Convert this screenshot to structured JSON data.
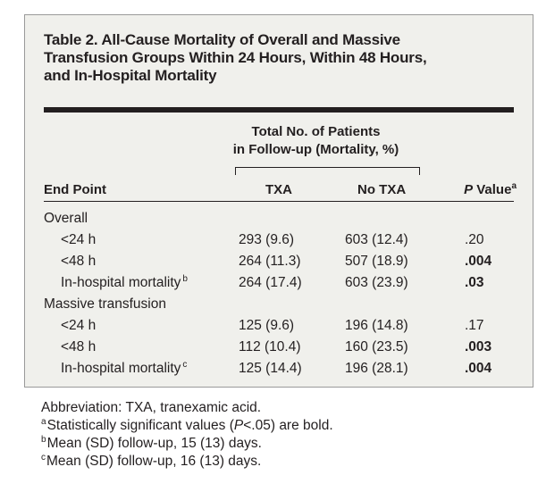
{
  "table": {
    "title": "Table 2. All-Cause Mortality of Overall and Massive\nTransfusion Groups Within 24 Hours, Within 48 Hours,\nand In-Hospital Mortality",
    "group_header": "Total No. of Patients\nin Follow-up (Mortality, %)",
    "columns": {
      "end_point": "End Point",
      "txa": "TXA",
      "no_txa": "No TXA",
      "p_value_italic": "P",
      "p_value_rest": " Value",
      "p_value_sup": "a"
    },
    "rows": [
      {
        "label": "Overall",
        "section": true,
        "sup": "",
        "txa": "",
        "no_txa": "",
        "p": "",
        "p_bold": false
      },
      {
        "label": "<24 h",
        "section": false,
        "sup": "",
        "txa": "293 (9.6)",
        "no_txa": "603 (12.4)",
        "p": ".20",
        "p_bold": false
      },
      {
        "label": "<48 h",
        "section": false,
        "sup": "",
        "txa": "264 (11.3)",
        "no_txa": "507 (18.9)",
        "p": ".004",
        "p_bold": true
      },
      {
        "label": "In-hospital mortality",
        "section": false,
        "sup": "b",
        "txa": "264 (17.4)",
        "no_txa": "603 (23.9)",
        "p": ".03",
        "p_bold": true
      },
      {
        "label": "Massive transfusion",
        "section": true,
        "sup": "",
        "txa": "",
        "no_txa": "",
        "p": "",
        "p_bold": false
      },
      {
        "label": "<24 h",
        "section": false,
        "sup": "",
        "txa": "125 (9.6)",
        "no_txa": "196 (14.8)",
        "p": ".17",
        "p_bold": false
      },
      {
        "label": "<48 h",
        "section": false,
        "sup": "",
        "txa": "112 (10.4)",
        "no_txa": "160 (23.5)",
        "p": ".003",
        "p_bold": true
      },
      {
        "label": "In-hospital mortality",
        "section": false,
        "sup": "c",
        "txa": "125 (14.4)",
        "no_txa": "196 (28.1)",
        "p": ".004",
        "p_bold": true
      }
    ]
  },
  "footnotes": {
    "abbreviation": "Abbreviation: TXA, tranexamic acid.",
    "a_marker": "a",
    "a_text_1": "Statistically significant values (",
    "a_text_p": "P",
    "a_text_2": "<.05) are bold.",
    "b_marker": "b",
    "b_text": "Mean (SD) follow-up, 15 (13) days.",
    "c_marker": "c",
    "c_text": "Mean (SD) follow-up, 16 (13) days."
  }
}
